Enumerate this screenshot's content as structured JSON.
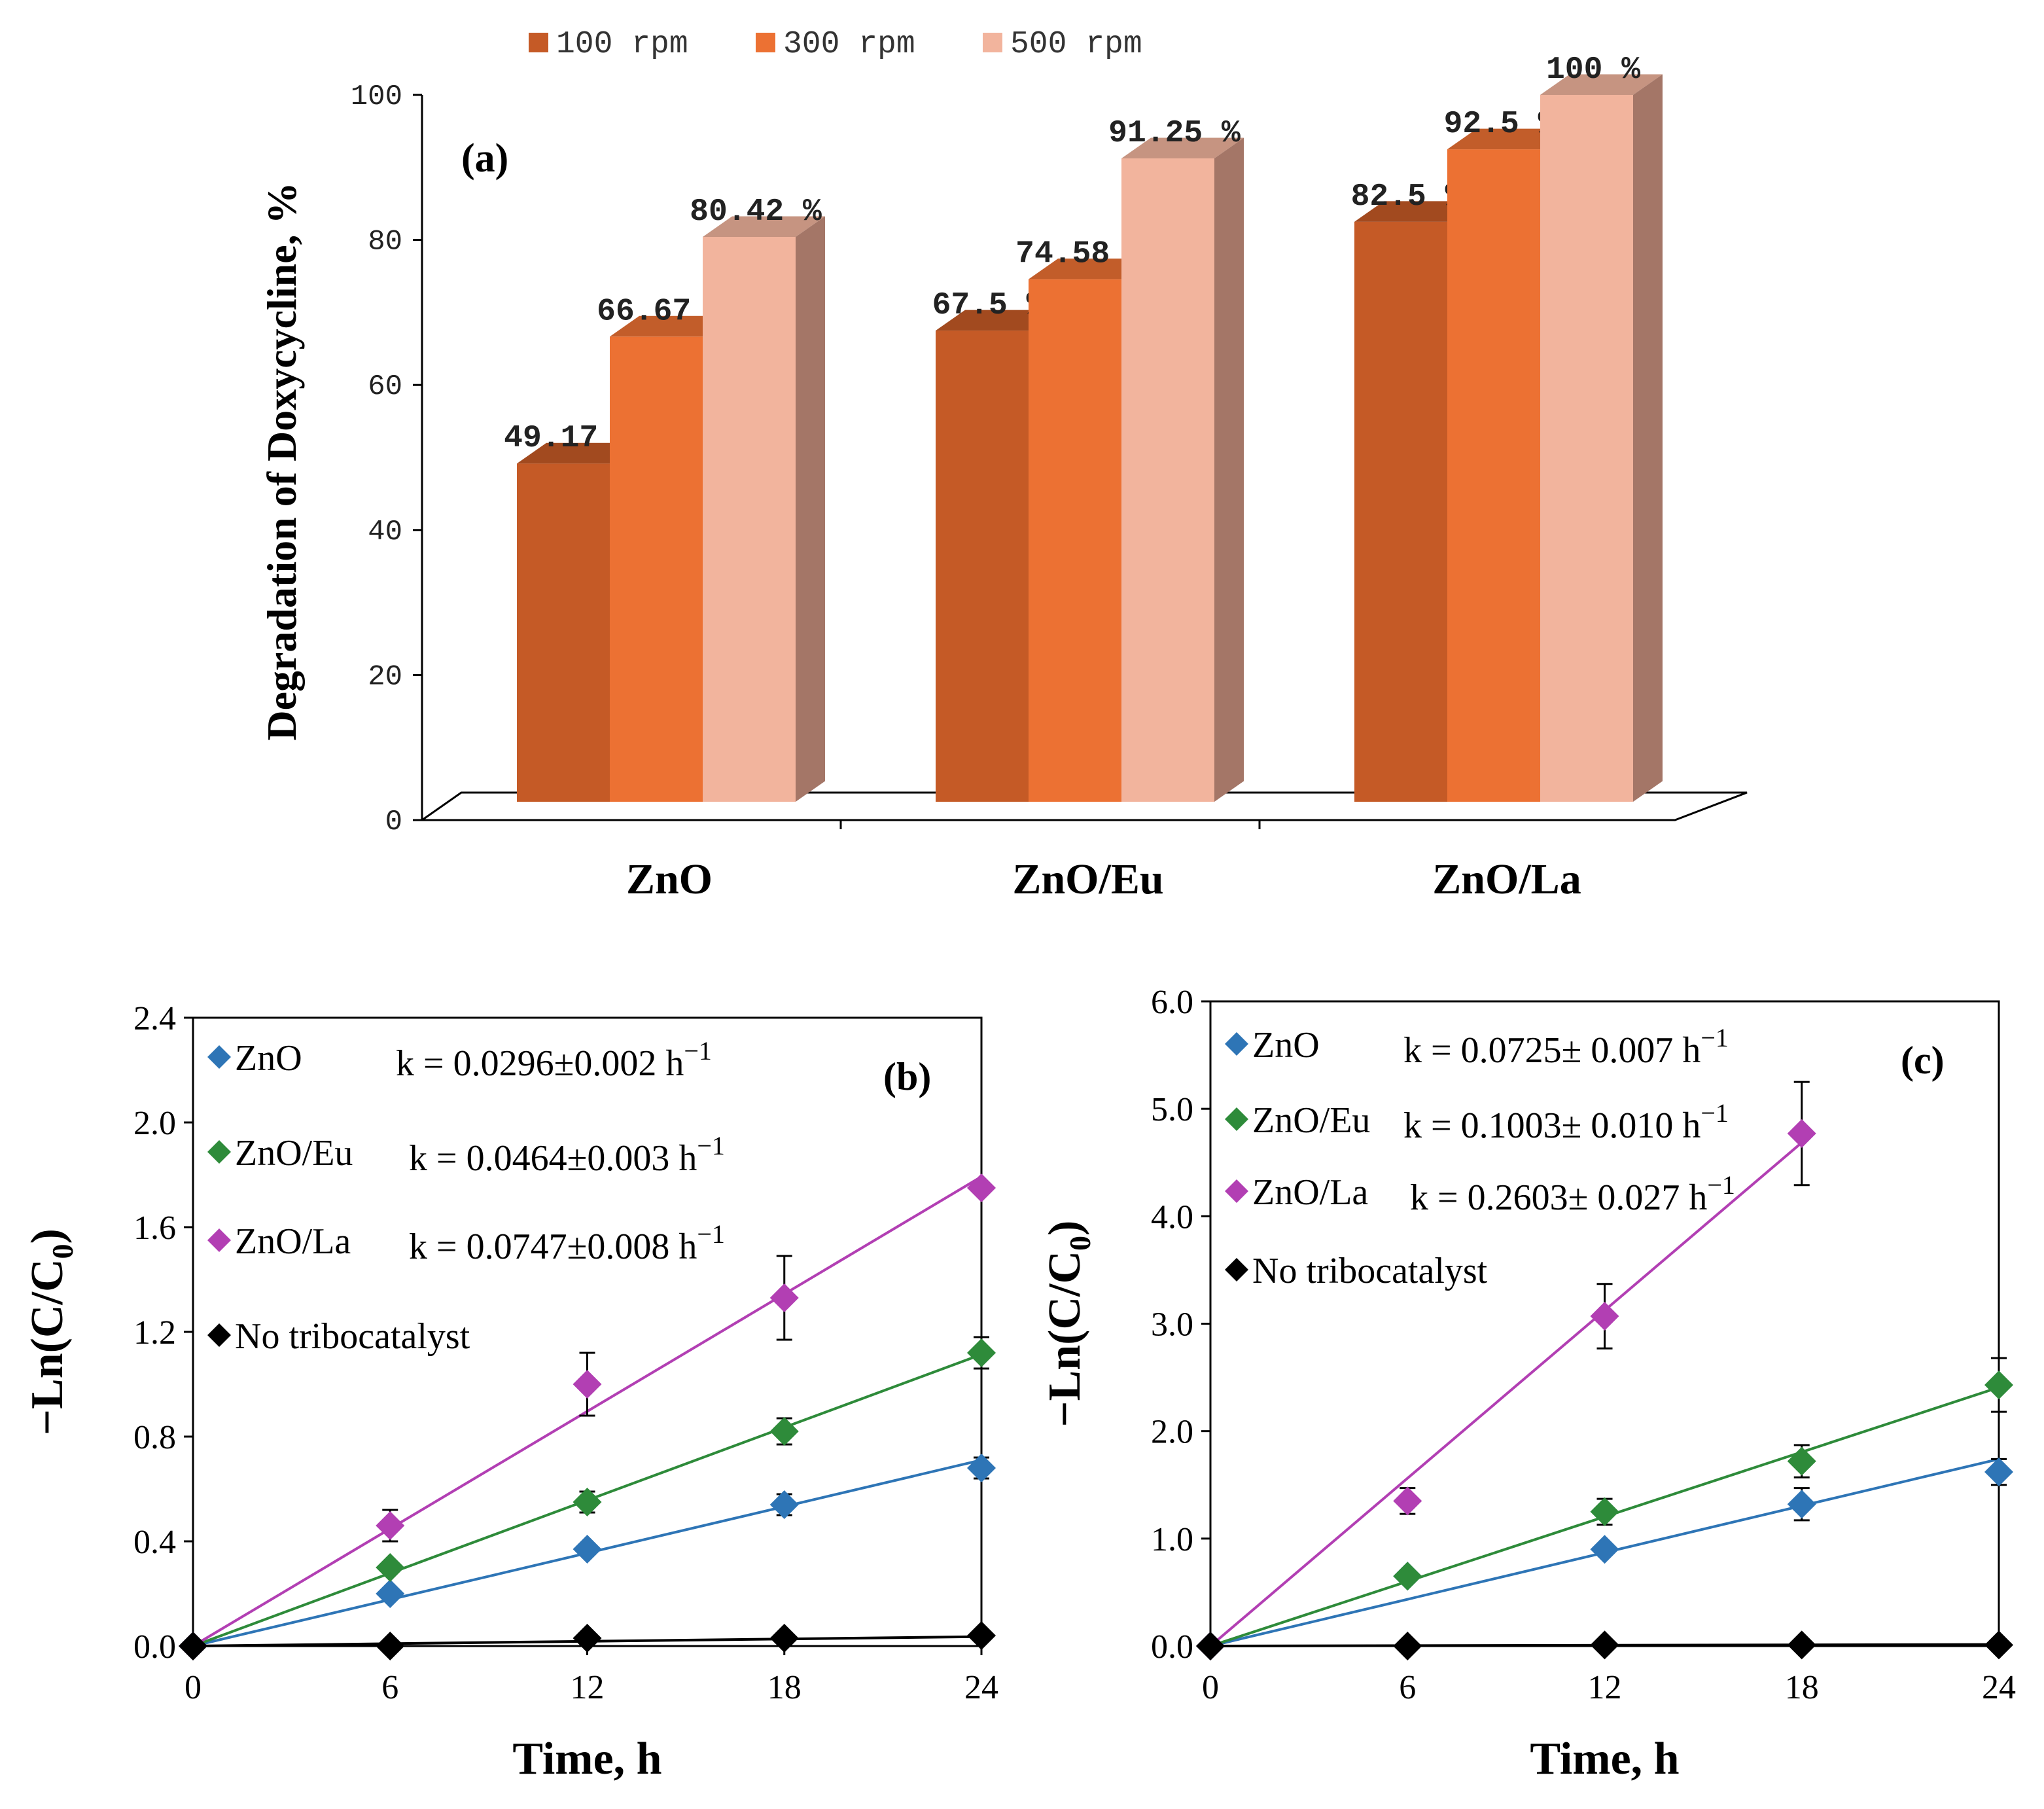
{
  "chart_data": [
    {
      "id": "a",
      "type": "bar",
      "panel_label": "(a)",
      "title": "",
      "xlabel": "",
      "ylabel": "Degradation of Doxycycline, %",
      "ylim": [
        0,
        100
      ],
      "yticks": [
        0,
        20,
        40,
        60,
        80,
        100
      ],
      "categories": [
        "ZnO",
        "ZnO/Eu",
        "ZnO/La"
      ],
      "legend_position": "top-center",
      "series": [
        {
          "name": "100 rpm",
          "color": "#c55a26",
          "values": [
            49.17,
            67.5,
            82.5
          ],
          "labels": [
            "49.17 %",
            "67.5 %",
            "82.5 %"
          ]
        },
        {
          "name": "300 rpm",
          "color": "#ec7133",
          "values": [
            66.67,
            74.58,
            92.5
          ],
          "labels": [
            "66.67 %",
            "74.58 %",
            "92.5 %"
          ]
        },
        {
          "name": "500 rpm",
          "color": "#f2b49d",
          "values": [
            80.42,
            91.25,
            100
          ],
          "labels": [
            "80.42 %",
            "91.25 %",
            "100 %"
          ]
        }
      ]
    },
    {
      "id": "b",
      "type": "scatter",
      "panel_label": "(b)",
      "xlabel": "Time, h",
      "ylabel": "−Ln(C/C0)",
      "xlim": [
        0,
        24
      ],
      "ylim": [
        0,
        2.4
      ],
      "xticks": [
        0,
        6,
        12,
        18,
        24
      ],
      "yticks": [
        "0.0",
        "0.4",
        "0.8",
        "1.2",
        "1.6",
        "2.0",
        "2.4"
      ],
      "legend_position": "top-left",
      "x": [
        0,
        6,
        12,
        18,
        24
      ],
      "series": [
        {
          "name": "ZnO",
          "color": "#2e75b6",
          "y": [
            0,
            0.2,
            0.37,
            0.54,
            0.68
          ],
          "err": [
            0,
            0,
            0,
            0.04,
            0.04
          ],
          "slope": 0.0296,
          "k": "k = 0.0296±0.002  h",
          "k_sup": "−1"
        },
        {
          "name": "ZnO/Eu",
          "color": "#2e8b3a",
          "y": [
            0,
            0.3,
            0.55,
            0.82,
            1.12
          ],
          "err": [
            0,
            0,
            0.04,
            0.05,
            0.06
          ],
          "slope": 0.0464,
          "k": "k = 0.0464±0.003   h",
          "k_sup": "−1"
        },
        {
          "name": "ZnO/La",
          "color": "#b23fb3",
          "y": [
            0,
            0.46,
            1.0,
            1.33,
            1.75
          ],
          "err": [
            0,
            0.06,
            0.12,
            0.16,
            0
          ],
          "slope": 0.0747,
          "k": "k = 0.0747±0.008   h",
          "k_sup": "−1"
        },
        {
          "name": "No tribocatalyst",
          "color": "#000000",
          "y": [
            0,
            0,
            0.03,
            0.03,
            0.04
          ],
          "err": [
            0,
            0,
            0,
            0,
            0
          ],
          "slope": 0.0015,
          "k": "",
          "k_sup": ""
        }
      ]
    },
    {
      "id": "c",
      "type": "scatter",
      "panel_label": "(c)",
      "xlabel": "Time, h",
      "ylabel": "−Ln(C/C0)",
      "xlim": [
        0,
        24
      ],
      "ylim": [
        0,
        6
      ],
      "xticks": [
        0,
        6,
        12,
        18,
        24
      ],
      "yticks": [
        "0.0",
        "1.0",
        "2.0",
        "3.0",
        "4.0",
        "5.0",
        "6.0"
      ],
      "legend_position": "top-left",
      "x": [
        0,
        6,
        12,
        18,
        24
      ],
      "series": [
        {
          "name": "ZnO",
          "color": "#2e75b6",
          "y": [
            0,
            0.65,
            0.9,
            1.32,
            1.62
          ],
          "err": [
            0,
            0,
            0,
            0.15,
            0.12
          ],
          "slope": 0.0725,
          "k": "k = 0.0725± 0.007 h",
          "k_sup": "−1"
        },
        {
          "name": "ZnO/Eu",
          "color": "#2e8b3a",
          "y": [
            0,
            0.65,
            1.25,
            1.72,
            2.43
          ],
          "err": [
            0,
            0,
            0.12,
            0.15,
            0.25
          ],
          "slope": 0.1003,
          "k": "k = 0.1003± 0.010 h",
          "k_sup": "−1"
        },
        {
          "name": "ZnO/La",
          "color": "#b23fb3",
          "y": [
            0,
            1.35,
            3.07,
            4.77,
            null
          ],
          "err": [
            0,
            0.12,
            0.3,
            0.48,
            0
          ],
          "slope": 0.2603,
          "k": "k = 0.2603± 0.027 h",
          "k_sup": "−1",
          "line_xmax": 18
        },
        {
          "name": "No tribocatalyst",
          "color": "#000000",
          "y": [
            0,
            0,
            0.01,
            0.01,
            0.01
          ],
          "err": [
            0,
            0,
            0,
            0,
            0
          ],
          "slope": 0.0006,
          "k": "",
          "k_sup": ""
        }
      ]
    }
  ]
}
